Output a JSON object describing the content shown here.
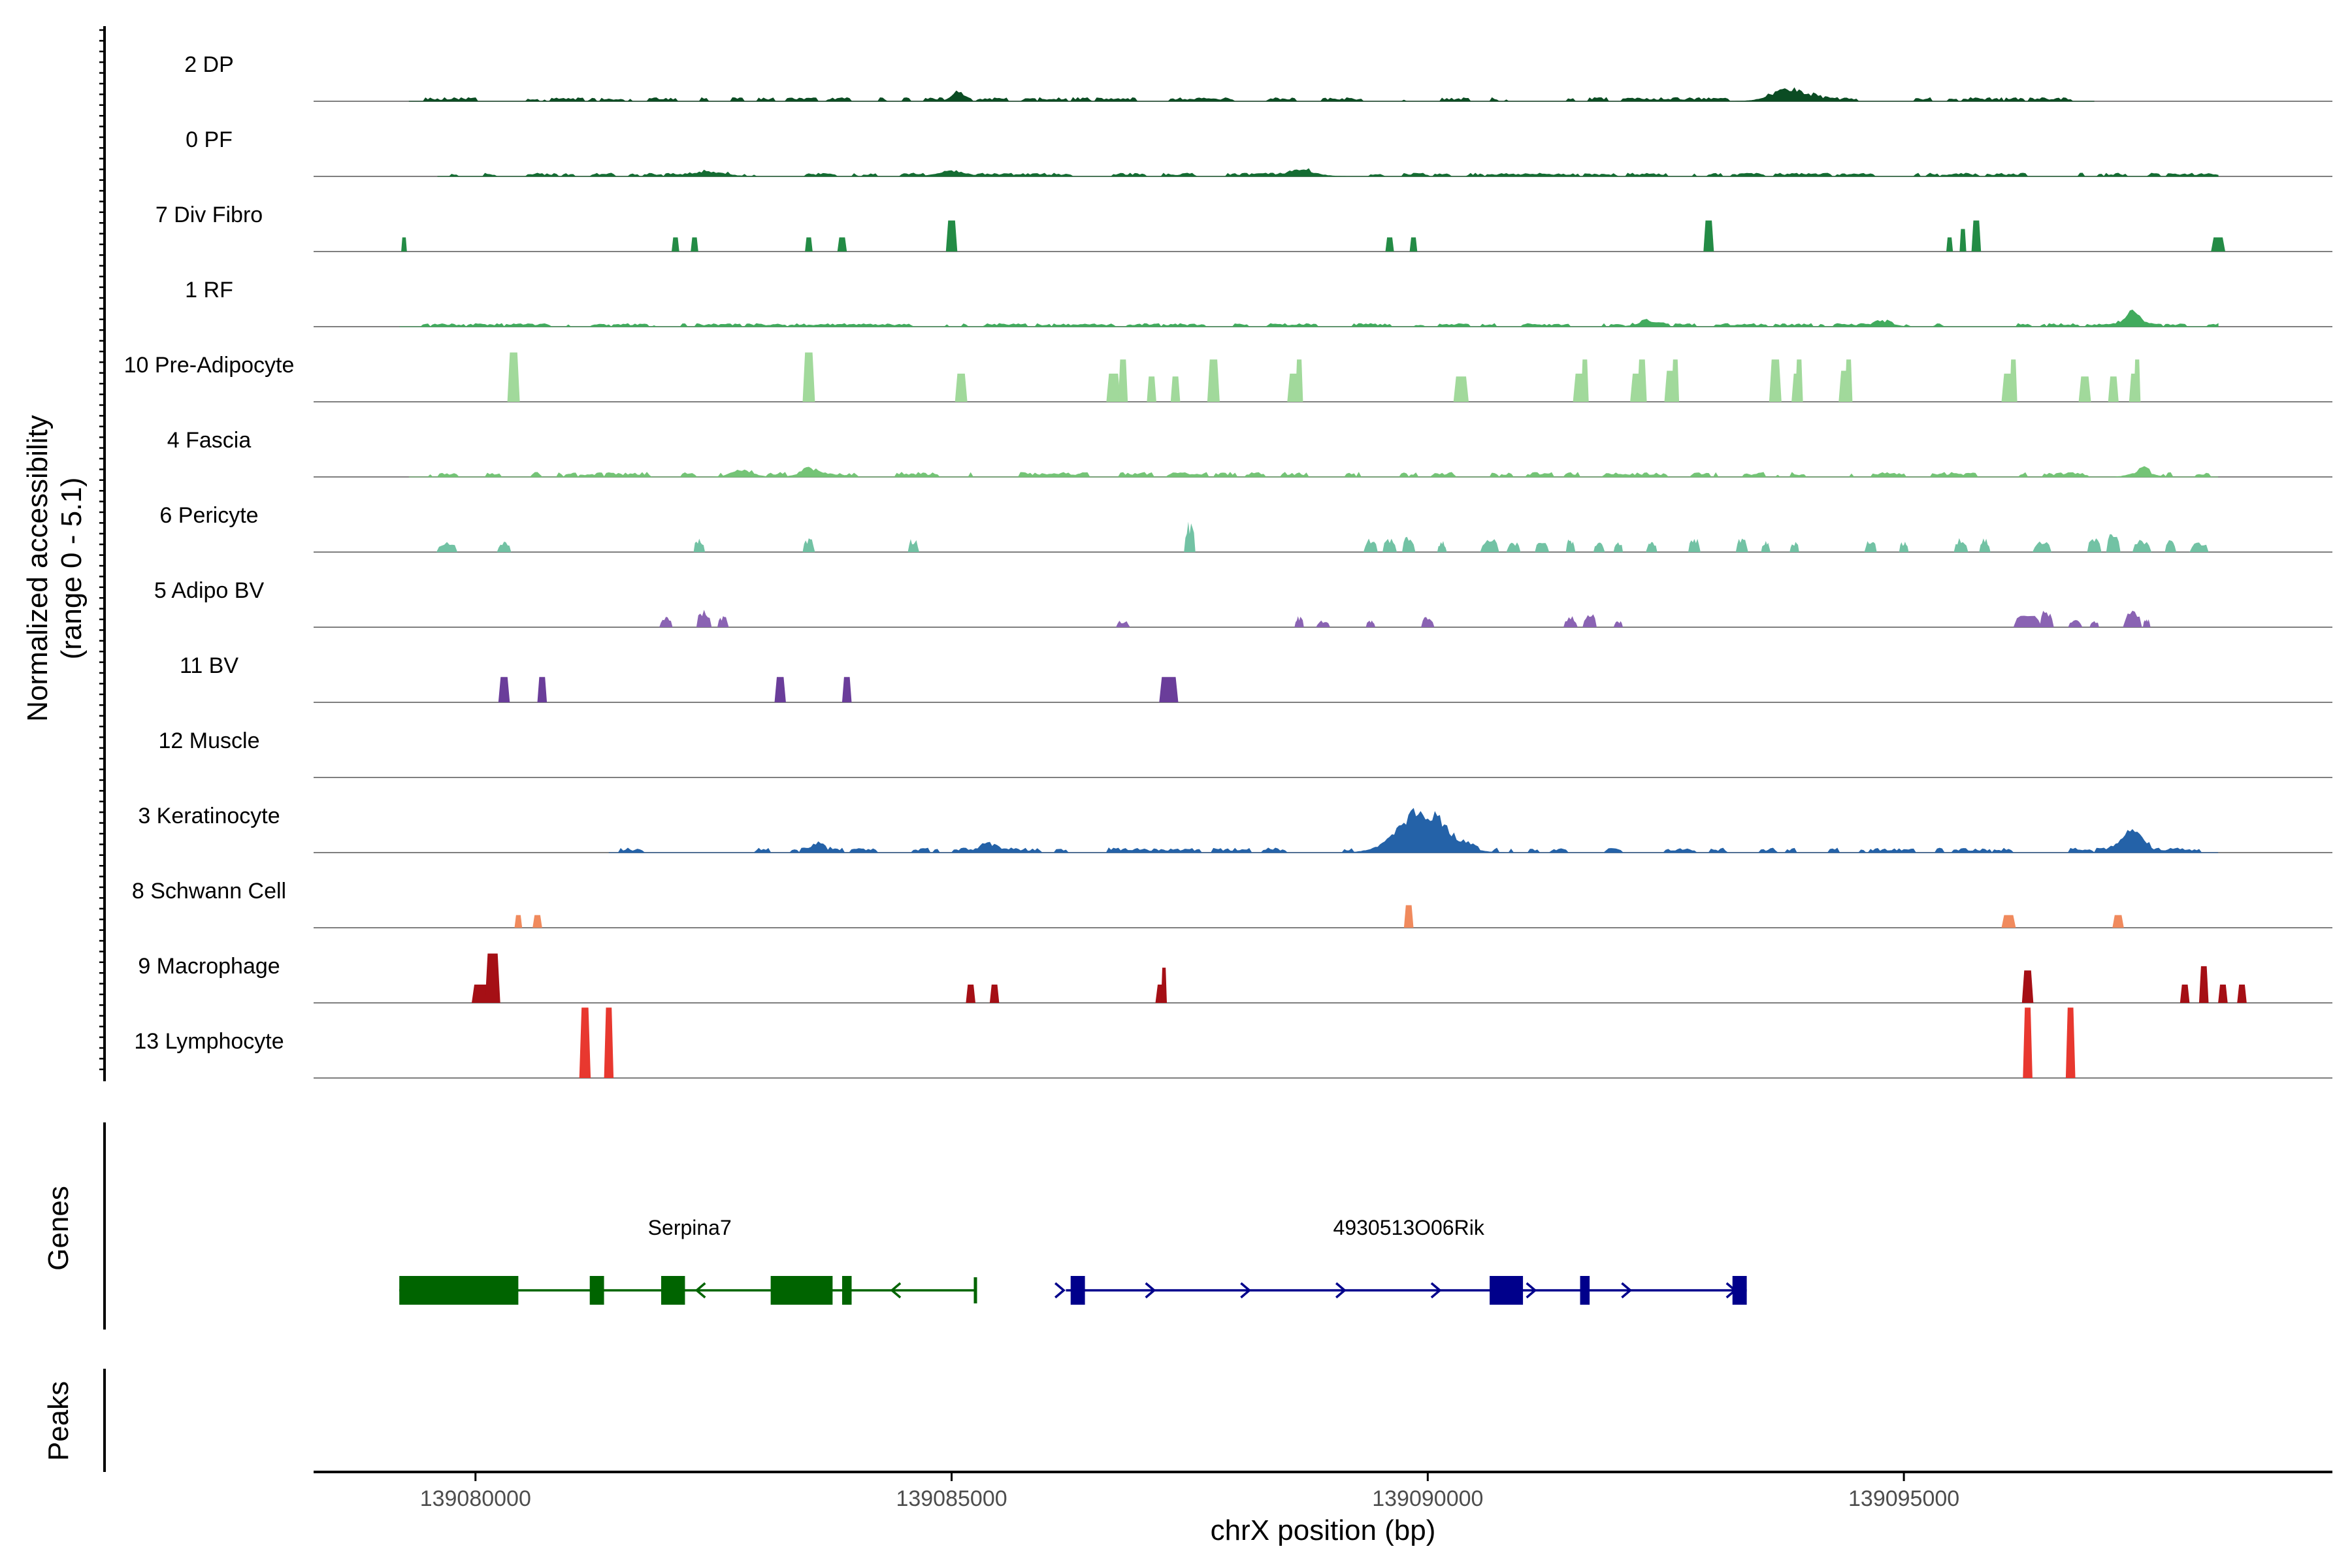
{
  "chart_data": {
    "type": "area",
    "title": "",
    "ylabel_line1": "Normalized accessibility",
    "ylabel_line2": "(range 0 - 5.1)",
    "xlabel": "chrX position (bp)",
    "xlim": [
      139078300,
      139099500
    ],
    "ymax": 5.1,
    "xticks": [
      {
        "value": 139080000,
        "label": "139080000"
      },
      {
        "value": 139085000,
        "label": "139085000"
      },
      {
        "value": 139090000,
        "label": "139090000"
      },
      {
        "value": 139095000,
        "label": "139095000"
      }
    ],
    "tracks": [
      {
        "name": "2 DP",
        "color": "#0b4c23",
        "mode": "noise",
        "range": [
          139079300,
          139097000
        ],
        "level": 0.2,
        "density": 0.55,
        "seed": 3,
        "peaks": [
          [
            139085050,
            0.6,
            90
          ],
          [
            139093800,
            0.9,
            250
          ],
          [
            139087600,
            0.25,
            60
          ]
        ]
      },
      {
        "name": "0 PF",
        "color": "#146c32",
        "mode": "noise",
        "range": [
          139079600,
          139098300
        ],
        "level": 0.18,
        "density": 0.95,
        "seed": 7,
        "peaks": [
          [
            139085000,
            0.4,
            200
          ],
          [
            139088700,
            0.35,
            200
          ],
          [
            139082500,
            0.3,
            200
          ]
        ]
      },
      {
        "name": "7 Div Fibro",
        "color": "#238b45",
        "mode": "blocks",
        "blocks": [
          [
            139079250,
            60,
            1.0
          ],
          [
            139082100,
            80,
            1.0
          ],
          [
            139082300,
            80,
            1.0
          ],
          [
            139083500,
            80,
            1.0
          ],
          [
            139083850,
            100,
            1.0
          ],
          [
            139085000,
            120,
            2.2
          ],
          [
            139089600,
            90,
            1.0
          ],
          [
            139089850,
            80,
            1.0
          ],
          [
            139092950,
            110,
            2.2
          ],
          [
            139095480,
            70,
            1.0
          ],
          [
            139095620,
            70,
            1.6
          ],
          [
            139095760,
            100,
            2.2
          ],
          [
            139098300,
            150,
            1.0
          ]
        ]
      },
      {
        "name": "1 RF",
        "color": "#41ab5d",
        "mode": "noise",
        "range": [
          139079200,
          139098300
        ],
        "level": 0.17,
        "density": 0.6,
        "seed": 11,
        "peaks": [
          [
            139097400,
            0.9,
            120
          ],
          [
            139094800,
            0.35,
            120
          ],
          [
            139092300,
            0.3,
            150
          ]
        ]
      },
      {
        "name": "10 Pre-Adipocyte",
        "color": "#a1d99b",
        "mode": "blocks",
        "blocks": [
          [
            139080400,
            130,
            3.5
          ],
          [
            139083500,
            130,
            3.5
          ],
          [
            139085100,
            130,
            2.0
          ],
          [
            139086700,
            150,
            2.0
          ],
          [
            139086800,
            100,
            3.0
          ],
          [
            139087100,
            100,
            1.8
          ],
          [
            139087350,
            100,
            1.8
          ],
          [
            139087750,
            130,
            3.0
          ],
          [
            139088600,
            150,
            2.0
          ],
          [
            139088650,
            80,
            3.0
          ],
          [
            139090350,
            160,
            1.8
          ],
          [
            139091600,
            150,
            2.0
          ],
          [
            139091650,
            80,
            3.0
          ],
          [
            139092200,
            150,
            2.0
          ],
          [
            139092250,
            100,
            3.0
          ],
          [
            139092550,
            130,
            2.2
          ],
          [
            139092600,
            80,
            3.0
          ],
          [
            139093650,
            130,
            3.0
          ],
          [
            139093880,
            120,
            2.0
          ],
          [
            139093900,
            80,
            3.0
          ],
          [
            139094380,
            130,
            2.2
          ],
          [
            139094420,
            80,
            3.0
          ],
          [
            139096100,
            150,
            2.0
          ],
          [
            139096150,
            80,
            3.0
          ],
          [
            139096900,
            130,
            1.8
          ],
          [
            139097200,
            110,
            1.8
          ],
          [
            139097420,
            110,
            2.0
          ],
          [
            139097450,
            70,
            3.0
          ]
        ]
      },
      {
        "name": "4 Fascia",
        "color": "#74c476",
        "mode": "noise",
        "range": [
          139079300,
          139098300
        ],
        "level": 0.25,
        "density": 0.5,
        "seed": 19,
        "peaks": [
          [
            139082800,
            0.5,
            150
          ],
          [
            139083500,
            0.4,
            150
          ],
          [
            139097500,
            0.4,
            150
          ]
        ]
      },
      {
        "name": "6 Pericyte",
        "color": "#72c2a4",
        "mode": "clusters",
        "clusters": [
          [
            139079700,
            220,
            0.8
          ],
          [
            139080300,
            150,
            0.8
          ],
          [
            139082350,
            120,
            1.0
          ],
          [
            139083500,
            130,
            1.0
          ],
          [
            139084600,
            120,
            1.0
          ],
          [
            139087500,
            120,
            2.2
          ],
          [
            139089400,
            150,
            1.0
          ],
          [
            139089600,
            150,
            1.0
          ],
          [
            139089800,
            140,
            1.2
          ],
          [
            139090150,
            100,
            0.8
          ],
          [
            139090650,
            200,
            1.0
          ],
          [
            139090900,
            150,
            0.8
          ],
          [
            139091200,
            150,
            0.8
          ],
          [
            139091500,
            100,
            1.0
          ],
          [
            139091800,
            120,
            0.8
          ],
          [
            139092000,
            100,
            0.8
          ],
          [
            139092350,
            120,
            0.8
          ],
          [
            139092800,
            130,
            1.0
          ],
          [
            139093300,
            130,
            1.0
          ],
          [
            139093550,
            100,
            0.8
          ],
          [
            139093850,
            100,
            0.8
          ],
          [
            139094650,
            130,
            1.0
          ],
          [
            139095000,
            100,
            0.8
          ],
          [
            139095600,
            150,
            1.0
          ],
          [
            139095850,
            120,
            1.0
          ],
          [
            139096450,
            200,
            0.8
          ],
          [
            139097000,
            150,
            1.0
          ],
          [
            139097200,
            150,
            1.4
          ],
          [
            139097500,
            200,
            1.0
          ],
          [
            139097800,
            120,
            1.0
          ],
          [
            139098100,
            200,
            0.8
          ]
        ]
      },
      {
        "name": "5 Adipo BV",
        "color": "#8a63b3",
        "mode": "clusters",
        "clusters": [
          [
            139082000,
            140,
            0.8
          ],
          [
            139082400,
            160,
            1.3
          ],
          [
            139082600,
            120,
            0.8
          ],
          [
            139086800,
            150,
            0.5
          ],
          [
            139088650,
            100,
            0.8
          ],
          [
            139088900,
            150,
            0.5
          ],
          [
            139089400,
            100,
            0.5
          ],
          [
            139090000,
            140,
            0.8
          ],
          [
            139091500,
            150,
            0.8
          ],
          [
            139091700,
            150,
            1.0
          ],
          [
            139092000,
            100,
            0.5
          ],
          [
            139096300,
            300,
            1.0
          ],
          [
            139096500,
            150,
            1.3
          ],
          [
            139096800,
            150,
            0.6
          ],
          [
            139097000,
            100,
            0.5
          ],
          [
            139097400,
            200,
            1.3
          ],
          [
            139097550,
            80,
            0.6
          ]
        ]
      },
      {
        "name": "11 BV",
        "color": "#6a3d9a",
        "mode": "blocks",
        "blocks": [
          [
            139080300,
            120,
            1.8
          ],
          [
            139080700,
            100,
            1.8
          ],
          [
            139083200,
            120,
            1.8
          ],
          [
            139083900,
            100,
            1.8
          ],
          [
            139087280,
            200,
            1.8
          ]
        ]
      },
      {
        "name": "12 Muscle",
        "color": "#2c2c8c",
        "mode": "none"
      },
      {
        "name": "3 Keratinocyte",
        "color": "#2462a8",
        "mode": "noise",
        "range": [
          139081400,
          139098300
        ],
        "level": 0.25,
        "density": 0.55,
        "seed": 23,
        "peaks": [
          [
            139089950,
            3.1,
            350
          ],
          [
            139097400,
            1.4,
            160
          ],
          [
            139083600,
            0.5,
            100
          ],
          [
            139085400,
            0.5,
            120
          ]
        ]
      },
      {
        "name": "8 Schwann Cell",
        "color": "#f08a5d",
        "mode": "blocks",
        "blocks": [
          [
            139080450,
            80,
            0.9
          ],
          [
            139080650,
            100,
            0.9
          ],
          [
            139089800,
            100,
            1.6
          ],
          [
            139096100,
            150,
            0.9
          ],
          [
            139097250,
            120,
            0.9
          ]
        ]
      },
      {
        "name": "9 Macrophage",
        "color": "#a50f15",
        "mode": "blocks",
        "blocks": [
          [
            139080100,
            280,
            1.3
          ],
          [
            139080180,
            160,
            3.5
          ],
          [
            139085200,
            100,
            1.3
          ],
          [
            139085450,
            100,
            1.3
          ],
          [
            139087200,
            120,
            1.3
          ],
          [
            139087230,
            60,
            2.5
          ],
          [
            139096300,
            120,
            2.3
          ],
          [
            139097950,
            100,
            1.3
          ],
          [
            139098150,
            100,
            2.6
          ],
          [
            139098350,
            100,
            1.3
          ],
          [
            139098550,
            100,
            1.3
          ]
        ]
      },
      {
        "name": "13 Lymphocyte",
        "color": "#e8382f",
        "mode": "blocks",
        "blocks": [
          [
            139081150,
            120,
            5.0
          ],
          [
            139081400,
            100,
            5.0
          ],
          [
            139096300,
            100,
            5.0
          ],
          [
            139096750,
            100,
            5.0
          ]
        ]
      }
    ],
    "genes_label": "Genes",
    "peaks_label": "Peaks",
    "genes": [
      {
        "name": "Serpina7",
        "color": "#006400",
        "strand": "-",
        "start": 139079200,
        "end": 139085250,
        "label_x": 139082250,
        "exons": [
          [
            139079200,
            139080450
          ],
          [
            139081200,
            139081350
          ],
          [
            139081950,
            139082200
          ],
          [
            139083100,
            139083750
          ],
          [
            139083850,
            139083950
          ]
        ],
        "arrows": [
          139082350,
          139084400
        ],
        "endcap": 139085250
      },
      {
        "name": "4930513O06Rik",
        "color": "#00008b",
        "strand": "+",
        "start": 139086200,
        "end": 139093350,
        "label_x": 139089800,
        "exons": [
          [
            139086250,
            139086400
          ],
          [
            139090650,
            139091000
          ],
          [
            139091600,
            139091700
          ],
          [
            139093200,
            139093350
          ]
        ],
        "arrows": [
          139086150,
          139087100,
          139088100,
          139089100,
          139090100,
          139091100,
          139092100,
          139093200
        ]
      }
    ]
  }
}
